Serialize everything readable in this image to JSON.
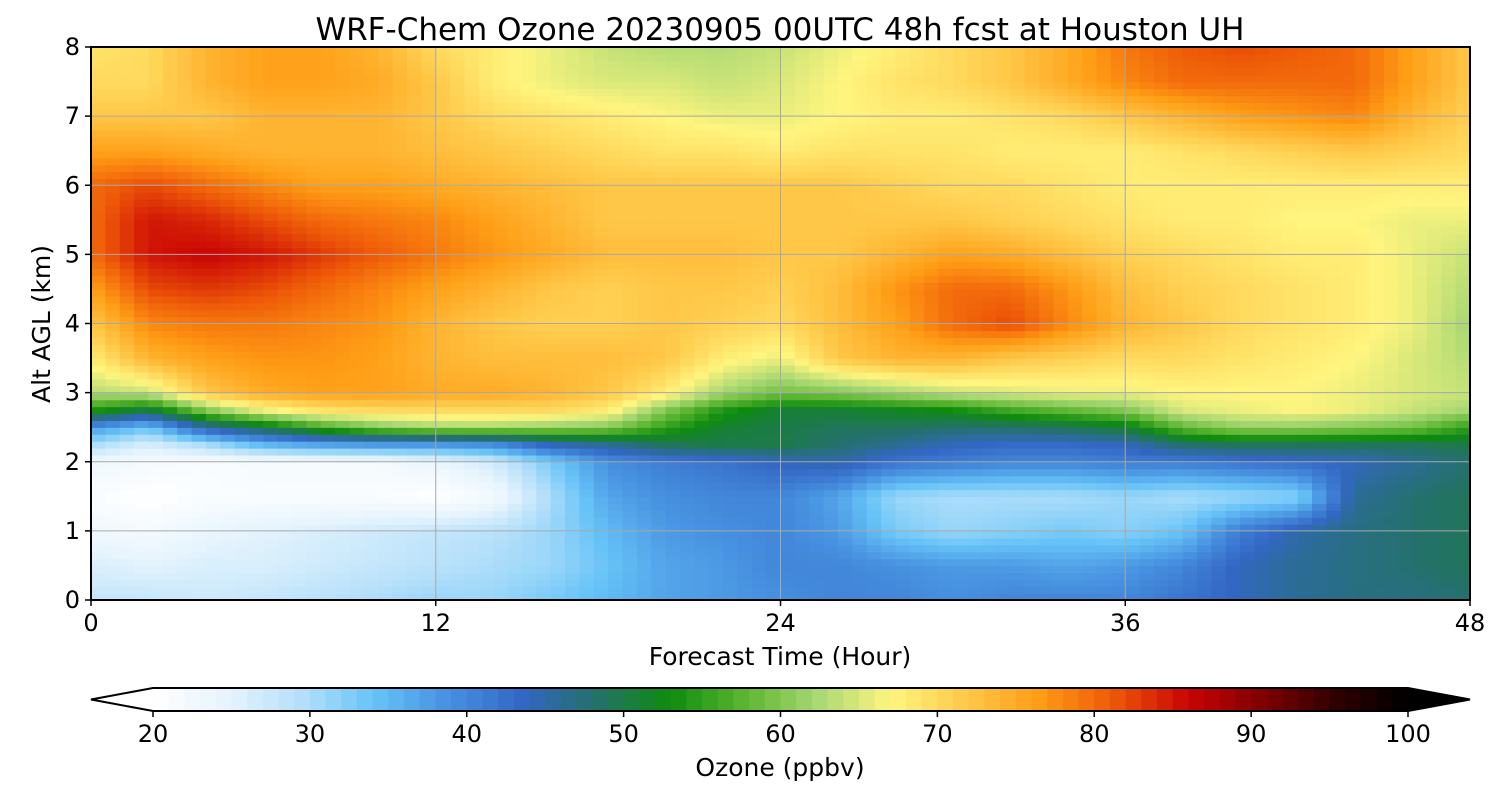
{
  "chart_data": {
    "type": "heatmap",
    "title": "WRF-Chem Ozone  20230905 00UTC 48h fcst at Houston UH",
    "xlabel": "Forecast Time (Hour)",
    "ylabel": "Alt AGL (km)",
    "xlim": [
      0,
      48
    ],
    "ylim": [
      0,
      8
    ],
    "xticks": [
      0,
      12,
      24,
      36,
      48
    ],
    "yticks": [
      0,
      1,
      2,
      3,
      4,
      5,
      6,
      7,
      8
    ],
    "grid": true,
    "x": [
      0,
      2,
      4,
      6,
      8,
      10,
      12,
      14,
      16,
      18,
      20,
      22,
      24,
      26,
      28,
      30,
      32,
      34,
      36,
      38,
      40,
      42,
      44,
      46,
      48
    ],
    "y": [
      0,
      0.5,
      1,
      1.5,
      2,
      2.25,
      2.5,
      2.75,
      3,
      3.5,
      4,
      4.5,
      5,
      5.5,
      6,
      6.5,
      7,
      7.5,
      8
    ],
    "values": [
      [
        28,
        28,
        27,
        28,
        29,
        30,
        31,
        31,
        33,
        35,
        37,
        38,
        39,
        40,
        40,
        39,
        40,
        40,
        40,
        42,
        44,
        46,
        47,
        47,
        48
      ],
      [
        26,
        25,
        26,
        26,
        27,
        28,
        29,
        30,
        31,
        34,
        37,
        38,
        40,
        40,
        39,
        38,
        38,
        37,
        38,
        40,
        44,
        46,
        47,
        48,
        49
      ],
      [
        23,
        22,
        24,
        25,
        26,
        27,
        28,
        29,
        31,
        35,
        38,
        39,
        40,
        38,
        33,
        31,
        32,
        33,
        32,
        34,
        41,
        45,
        47,
        48,
        49
      ],
      [
        21,
        20,
        21,
        21,
        21,
        21,
        20,
        22,
        30,
        37,
        39,
        40,
        40,
        37,
        31,
        30,
        30,
        30,
        31,
        30,
        31,
        32,
        46,
        48,
        49
      ],
      [
        23,
        22,
        21,
        22,
        22,
        22,
        24,
        27,
        33,
        39,
        41,
        42,
        44,
        45,
        42,
        41,
        40,
        40,
        41,
        41,
        42,
        43,
        44,
        46,
        48
      ],
      [
        30,
        26,
        30,
        35,
        37,
        38,
        38,
        39,
        44,
        46,
        49,
        50,
        50,
        48,
        46,
        44,
        43,
        43,
        44,
        48,
        49,
        49,
        49,
        49,
        50
      ],
      [
        38,
        34,
        45,
        50,
        56,
        60,
        62,
        62,
        61,
        60,
        55,
        51,
        50,
        49,
        49,
        48,
        48,
        49,
        51,
        58,
        61,
        61,
        60,
        59,
        55
      ],
      [
        54,
        50,
        60,
        66,
        69,
        70,
        70,
        70,
        70,
        68,
        60,
        54,
        51,
        51,
        52,
        53,
        56,
        58,
        60,
        65,
        66,
        67,
        66,
        64,
        62
      ],
      [
        63,
        64,
        72,
        75,
        76,
        76,
        75,
        75,
        74,
        72,
        68,
        62,
        59,
        60,
        62,
        64,
        65,
        66,
        66,
        67,
        67,
        67,
        66,
        65,
        64
      ],
      [
        68,
        74,
        76,
        77,
        77,
        76,
        74,
        73,
        73,
        73,
        72,
        68,
        66,
        72,
        74,
        74,
        72,
        71,
        70,
        70,
        69,
        68,
        67,
        65,
        63
      ],
      [
        72,
        78,
        79,
        79,
        78,
        77,
        74,
        72,
        71,
        71,
        72,
        71,
        70,
        73,
        76,
        80,
        82,
        78,
        74,
        72,
        70,
        69,
        68,
        66,
        62
      ],
      [
        76,
        82,
        83,
        82,
        80,
        78,
        76,
        74,
        72,
        71,
        72,
        72,
        71,
        73,
        77,
        80,
        80,
        77,
        73,
        71,
        70,
        69,
        68,
        66,
        63
      ],
      [
        80,
        85,
        86,
        85,
        83,
        81,
        79,
        77,
        75,
        73,
        73,
        73,
        72,
        72,
        74,
        76,
        75,
        73,
        71,
        70,
        69,
        68,
        68,
        66,
        64
      ],
      [
        80,
        85,
        84,
        82,
        80,
        79,
        78,
        76,
        74,
        72,
        72,
        72,
        72,
        72,
        72,
        72,
        71,
        70,
        69,
        68,
        68,
        67,
        67,
        66,
        66
      ],
      [
        80,
        82,
        80,
        78,
        76,
        76,
        75,
        74,
        73,
        72,
        72,
        72,
        72,
        72,
        71,
        70,
        70,
        69,
        68,
        68,
        68,
        68,
        68,
        68,
        68
      ],
      [
        76,
        76,
        75,
        74,
        74,
        74,
        73,
        72,
        71,
        70,
        69,
        69,
        68,
        69,
        69,
        69,
        68,
        68,
        68,
        69,
        70,
        71,
        72,
        71,
        70
      ],
      [
        72,
        72,
        72,
        74,
        74,
        74,
        72,
        70,
        69,
        68,
        67,
        66,
        66,
        67,
        68,
        68,
        69,
        70,
        72,
        74,
        76,
        77,
        78,
        74,
        71
      ],
      [
        70,
        70,
        74,
        76,
        76,
        75,
        72,
        68,
        66,
        65,
        65,
        64,
        65,
        67,
        69,
        70,
        72,
        75,
        78,
        80,
        80,
        80,
        80,
        76,
        72
      ],
      [
        69,
        70,
        74,
        76,
        76,
        74,
        70,
        68,
        66,
        64,
        63,
        63,
        64,
        66,
        68,
        70,
        72,
        75,
        79,
        81,
        82,
        81,
        80,
        76,
        72
      ]
    ],
    "colorbar": {
      "label": "Ozone  (ppbv)",
      "min": 20,
      "max": 100,
      "ticks": [
        20,
        30,
        40,
        50,
        60,
        70,
        80,
        90,
        100
      ],
      "extend": "both",
      "colors": [
        "#ffffff",
        "#e6f4fd",
        "#b5e0fa",
        "#66c3f7",
        "#4791e0",
        "#3367c4",
        "#24716a",
        "#0e8b0e",
        "#5bb531",
        "#a8d873",
        "#fff57f",
        "#ffc94a",
        "#ff9d15",
        "#ee5908",
        "#c90505",
        "#820000",
        "#300000",
        "#000000"
      ]
    }
  }
}
